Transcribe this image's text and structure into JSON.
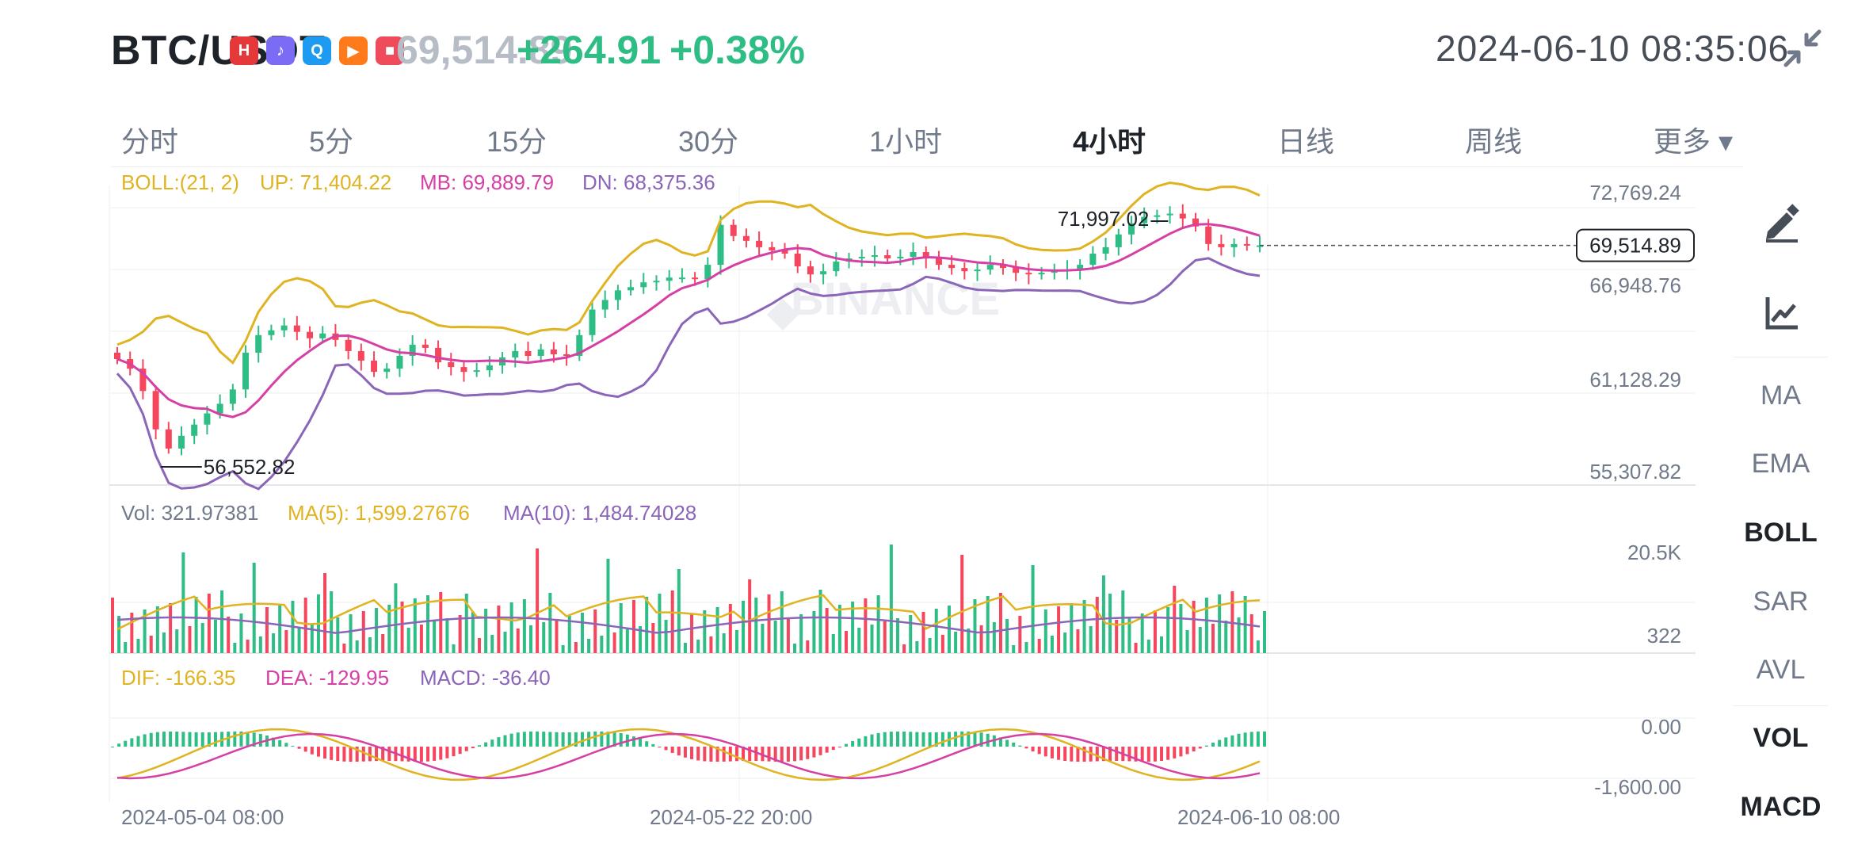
{
  "header": {
    "symbol": "BTC/USDT",
    "price": "69,514.89",
    "change": "+264.91",
    "change_pct": "+0.38%",
    "datetime": "2024-06-10 08:35:06",
    "status_icons": [
      {
        "name": "huawei-app-icon",
        "glyph": "H",
        "color": "#e5383b"
      },
      {
        "name": "music-app-icon",
        "glyph": "♪",
        "color": "#7b6cf6"
      },
      {
        "name": "search-app-icon",
        "glyph": "Q",
        "color": "#1e9bf0"
      },
      {
        "name": "video-app-icon",
        "glyph": "▶",
        "color": "#ff7a1a"
      },
      {
        "name": "red-app-icon",
        "glyph": "■",
        "color": "#f04b5a"
      }
    ]
  },
  "tabs": [
    {
      "label": "分时",
      "active": false
    },
    {
      "label": "5分",
      "active": false
    },
    {
      "label": "15分",
      "active": false
    },
    {
      "label": "30分",
      "active": false
    },
    {
      "label": "1小时",
      "active": false
    },
    {
      "label": "4小时",
      "active": true
    },
    {
      "label": "日线",
      "active": false
    },
    {
      "label": "周线",
      "active": false
    },
    {
      "label": "更多 ▾",
      "active": false
    }
  ],
  "side_panel": {
    "tools": [
      "draw-pen-icon",
      "chart-line-icon"
    ],
    "indicators": [
      {
        "label": "MA",
        "active": false
      },
      {
        "label": "EMA",
        "active": false
      },
      {
        "label": "BOLL",
        "active": true
      },
      {
        "label": "SAR",
        "active": false
      },
      {
        "label": "AVL",
        "active": false
      },
      {
        "label": "VOL",
        "active": true
      },
      {
        "label": "MACD",
        "active": true
      }
    ]
  },
  "colors": {
    "up": "#2ebd85",
    "down": "#f6465d",
    "boll_up": "#e0b320",
    "boll_mb": "#d63fa3",
    "boll_dn": "#8a65b8",
    "grid": "#eef0f2",
    "axis_text": "#707a8a"
  },
  "chart_data": {
    "type": "candlestick",
    "x_labels": [
      "2024-05-04 08:00",
      "2024-05-22 20:00",
      "2024-06-10 08:00"
    ],
    "main": {
      "legend": {
        "boll": "BOLL:(21, 2)",
        "up": "UP: 71,404.22",
        "mb": "MB: 69,889.79",
        "dn": "DN: 68,375.36"
      },
      "y_ticks": [
        "72,769.24",
        "66,948.76",
        "61,128.29",
        "55,307.82"
      ],
      "ylim": [
        55307.82,
        72769.24
      ],
      "last_price": "69,514.89",
      "last_price_value": 69514.89,
      "max_label": "71,997.02",
      "max_value": 71997.02,
      "min_label": "56,552.82",
      "min_value": 56552.82,
      "watermark": "BINANCE",
      "close_series": [
        62400,
        61800,
        60400,
        58000,
        56800,
        57600,
        58300,
        59000,
        59600,
        60500,
        62800,
        63900,
        64200,
        64500,
        64100,
        63700,
        64000,
        63600,
        62900,
        62300,
        61600,
        61800,
        62600,
        63300,
        63100,
        62200,
        61900,
        61600,
        61700,
        62000,
        62500,
        62900,
        62600,
        63000,
        62700,
        62600,
        63900,
        65500,
        66100,
        66700,
        66900,
        67200,
        67300,
        67500,
        67500,
        67400,
        68300,
        70800,
        70100,
        69800,
        69400,
        69200,
        69000,
        68200,
        67700,
        67900,
        68500,
        68700,
        68800,
        68900,
        68700,
        68800,
        69100,
        68700,
        68300,
        68100,
        67900,
        68000,
        68300,
        68100,
        67800,
        67700,
        67800,
        67900,
        68000,
        68300,
        69000,
        69400,
        70200,
        70900,
        71300,
        71400,
        71500,
        71200,
        70700,
        69600,
        69400,
        69600,
        69500,
        69515
      ]
    },
    "volume": {
      "legend": {
        "vol": "Vol: 321.97381",
        "ma5": "MA(5): 1,599.27676",
        "ma10": "MA(10): 1,484.74028"
      },
      "y_ticks": [
        "20.5K",
        "322"
      ]
    },
    "macd": {
      "legend": {
        "dif": "DIF: -166.35",
        "dea": "DEA: -129.95",
        "macd": "MACD: -36.40"
      },
      "y_ticks": [
        "0.00",
        "-1,600.00"
      ]
    }
  }
}
